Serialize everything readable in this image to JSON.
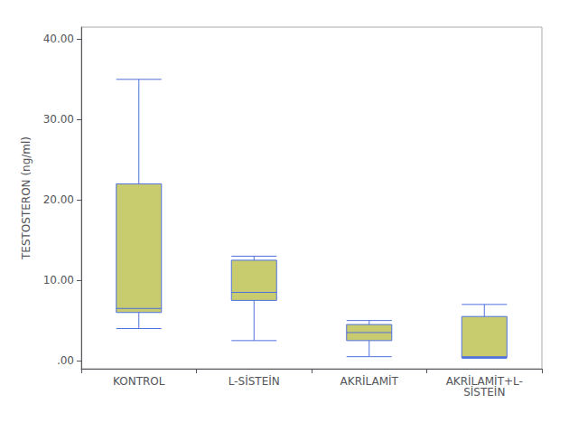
{
  "chart_data": {
    "type": "box",
    "categories": [
      "KONTROL",
      "L-SİSTEİN",
      "AKRİLAMİT",
      "AKRİLAMİT+L-\nSİSTEİN"
    ],
    "values": [
      [
        4.0,
        6.0,
        6.5,
        22.0,
        35.0
      ],
      [
        2.5,
        7.5,
        8.5,
        12.5,
        13.0
      ],
      [
        0.5,
        2.5,
        3.5,
        4.5,
        5.0
      ],
      [
        0.3,
        0.4,
        0.5,
        5.5,
        7.0
      ]
    ],
    "ylabel": "TESTOSTERON (ng/ml)",
    "ylim": [
      -1.0,
      41.5
    ],
    "yticks": [
      {
        "value": 0.0,
        "label": ".00"
      },
      {
        "value": 10.0,
        "label": "10.00"
      },
      {
        "value": 20.0,
        "label": "20.00"
      },
      {
        "value": 30.0,
        "label": "30.00"
      },
      {
        "value": 40.0,
        "label": "40.00"
      }
    ],
    "color": "#c8cb6e",
    "grid": false
  }
}
